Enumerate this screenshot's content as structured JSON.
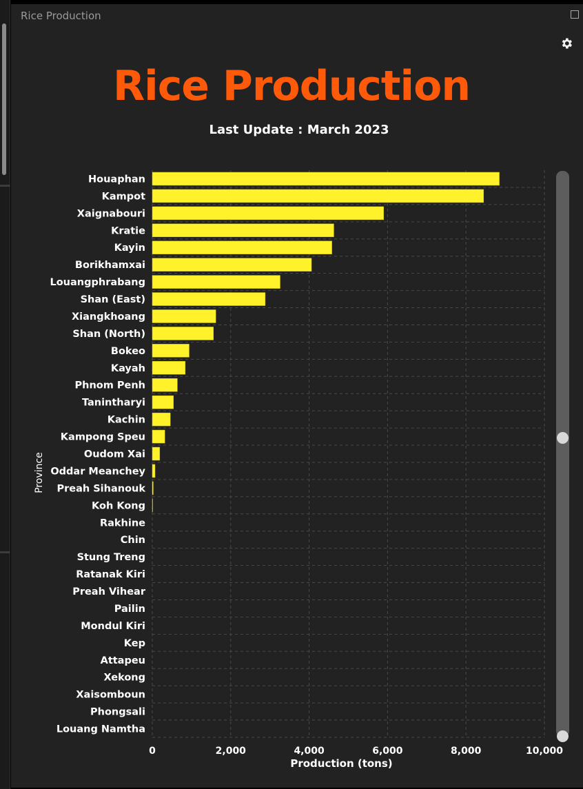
{
  "window": {
    "title": "Rice Production"
  },
  "header": {
    "title": "Rice Production",
    "subtitle": "Last Update : March 2023"
  },
  "icons": {
    "settings": "gear-icon",
    "maximize": "maximize-icon"
  },
  "colors": {
    "background": "#222222",
    "title": "#ff5a0a",
    "bar": "#fff12a",
    "text": "#ffffff",
    "grid": "#4a4a4a"
  },
  "chart_data": {
    "type": "bar",
    "orientation": "horizontal",
    "title": "Rice Production",
    "subtitle": "Last Update : March 2023",
    "xlabel": "Production (tons)",
    "ylabel": "Province",
    "xlim": [
      0,
      10000
    ],
    "xticks": [
      "0",
      "2,000",
      "4,000",
      "6,000",
      "8,000",
      "10,000"
    ],
    "grid": true,
    "categories": [
      "Houaphan",
      "Kampot",
      "Xaignabouri",
      "Kratie",
      "Kayin",
      "Borikhamxai",
      "Louangphrabang",
      "Shan (East)",
      "Xiangkhoang",
      "Shan (North)",
      "Bokeo",
      "Kayah",
      "Phnom Penh",
      "Tanintharyi",
      "Kachin",
      "Kampong Speu",
      "Oudom Xai",
      "Oddar Meanchey",
      "Preah Sihanouk",
      "Koh Kong",
      "Rakhine",
      "Chin",
      "Stung Treng",
      "Ratanak Kiri",
      "Preah Vihear",
      "Pailin",
      "Mondul Kiri",
      "Kep",
      "Attapeu",
      "Xekong",
      "Xaisomboun",
      "Phongsali",
      "Louang Namtha"
    ],
    "values": [
      8850,
      8450,
      5900,
      4630,
      4580,
      4060,
      3260,
      2880,
      1620,
      1560,
      940,
      840,
      640,
      540,
      460,
      320,
      190,
      70,
      25,
      10,
      0,
      0,
      0,
      0,
      0,
      0,
      0,
      0,
      0,
      0,
      0,
      0,
      0
    ]
  }
}
